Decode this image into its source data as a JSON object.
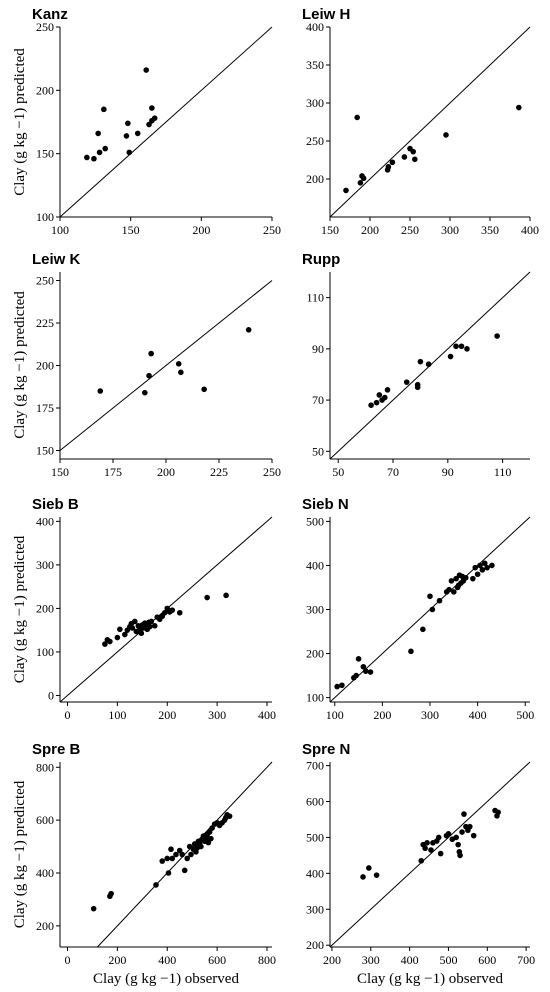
{
  "chart_data": [
    {
      "type": "scatter",
      "title": "Kanz",
      "xlim": [
        100,
        250
      ],
      "ylim": [
        100,
        250
      ],
      "xticks": [
        100,
        150,
        200,
        250
      ],
      "yticks": [
        100,
        150,
        200,
        250
      ],
      "identity_line": true,
      "points": [
        [
          119,
          147
        ],
        [
          124,
          146
        ],
        [
          127,
          166
        ],
        [
          128,
          151
        ],
        [
          131,
          185
        ],
        [
          132,
          154
        ],
        [
          147,
          164
        ],
        [
          148,
          174
        ],
        [
          149,
          151
        ],
        [
          155,
          166
        ],
        [
          161,
          216
        ],
        [
          163,
          173
        ],
        [
          165,
          186
        ],
        [
          165,
          176
        ],
        [
          167,
          178
        ]
      ]
    },
    {
      "type": "scatter",
      "title": "Leiw H",
      "xlim": [
        150,
        400
      ],
      "ylim": [
        150,
        400
      ],
      "xticks": [
        150,
        200,
        250,
        300,
        350,
        400
      ],
      "yticks": [
        200,
        250,
        300,
        350,
        400
      ],
      "identity_line": true,
      "points": [
        [
          170,
          185
        ],
        [
          184,
          281
        ],
        [
          188,
          195
        ],
        [
          190,
          204
        ],
        [
          192,
          201
        ],
        [
          222,
          212
        ],
        [
          223,
          216
        ],
        [
          228,
          222
        ],
        [
          243,
          229
        ],
        [
          250,
          240
        ],
        [
          254,
          236
        ],
        [
          256,
          226
        ],
        [
          295,
          258
        ],
        [
          386,
          294
        ]
      ]
    },
    {
      "type": "scatter",
      "title": "Leiw K",
      "xlim": [
        150,
        250
      ],
      "ylim": [
        145,
        255
      ],
      "xticks": [
        150,
        175,
        200,
        225,
        250
      ],
      "yticks": [
        150,
        175,
        200,
        225,
        250
      ],
      "identity_line": true,
      "points": [
        [
          169,
          185
        ],
        [
          190,
          184
        ],
        [
          192,
          194
        ],
        [
          193,
          207
        ],
        [
          206,
          201
        ],
        [
          207,
          196
        ],
        [
          218,
          186
        ],
        [
          239,
          221
        ]
      ]
    },
    {
      "type": "scatter",
      "title": "Rupp",
      "xlim": [
        47,
        120
      ],
      "ylim": [
        47,
        120
      ],
      "xticks": [
        50,
        70,
        90,
        110
      ],
      "yticks": [
        50,
        70,
        90,
        110
      ],
      "identity_line": true,
      "points": [
        [
          62,
          68
        ],
        [
          64,
          69
        ],
        [
          65,
          72
        ],
        [
          66,
          70
        ],
        [
          67,
          71
        ],
        [
          68,
          74
        ],
        [
          75,
          77
        ],
        [
          79,
          75
        ],
        [
          79,
          76
        ],
        [
          80,
          85
        ],
        [
          83,
          84
        ],
        [
          91,
          87
        ],
        [
          93,
          91
        ],
        [
          95,
          91
        ],
        [
          97,
          90
        ],
        [
          108,
          95
        ]
      ]
    },
    {
      "type": "scatter",
      "title": "Sieb B",
      "xlim": [
        -15,
        410
      ],
      "ylim": [
        -15,
        410
      ],
      "xticks": [
        0,
        100,
        200,
        300,
        400
      ],
      "yticks": [
        0,
        100,
        200,
        300,
        400
      ],
      "identity_line": true,
      "ylabel": "Clay (g kg −1) predicted",
      "points": [
        [
          75,
          118
        ],
        [
          80,
          128
        ],
        [
          85,
          124
        ],
        [
          100,
          133
        ],
        [
          105,
          152
        ],
        [
          115,
          140
        ],
        [
          120,
          150
        ],
        [
          125,
          158
        ],
        [
          128,
          165
        ],
        [
          130,
          155
        ],
        [
          135,
          170
        ],
        [
          138,
          147
        ],
        [
          142,
          160
        ],
        [
          145,
          153
        ],
        [
          148,
          143
        ],
        [
          150,
          162
        ],
        [
          152,
          155
        ],
        [
          155,
          166
        ],
        [
          158,
          160
        ],
        [
          160,
          152
        ],
        [
          163,
          168
        ],
        [
          165,
          158
        ],
        [
          168,
          170
        ],
        [
          175,
          160
        ],
        [
          180,
          180
        ],
        [
          185,
          175
        ],
        [
          190,
          182
        ],
        [
          195,
          190
        ],
        [
          200,
          200
        ],
        [
          205,
          192
        ],
        [
          210,
          196
        ],
        [
          225,
          190
        ],
        [
          280,
          225
        ],
        [
          318,
          230
        ]
      ]
    },
    {
      "type": "scatter",
      "title": "Sieb N",
      "xlim": [
        90,
        510
      ],
      "ylim": [
        90,
        510
      ],
      "xticks": [
        100,
        200,
        300,
        400,
        500
      ],
      "yticks": [
        100,
        200,
        300,
        400,
        500
      ],
      "identity_line": true,
      "points": [
        [
          105,
          125
        ],
        [
          115,
          128
        ],
        [
          140,
          145
        ],
        [
          145,
          150
        ],
        [
          150,
          188
        ],
        [
          160,
          170
        ],
        [
          165,
          160
        ],
        [
          175,
          158
        ],
        [
          260,
          205
        ],
        [
          285,
          255
        ],
        [
          300,
          330
        ],
        [
          305,
          300
        ],
        [
          320,
          320
        ],
        [
          335,
          340
        ],
        [
          340,
          345
        ],
        [
          345,
          365
        ],
        [
          350,
          340
        ],
        [
          355,
          370
        ],
        [
          358,
          350
        ],
        [
          360,
          355
        ],
        [
          362,
          378
        ],
        [
          365,
          360
        ],
        [
          368,
          375
        ],
        [
          370,
          365
        ],
        [
          375,
          372
        ],
        [
          390,
          370
        ],
        [
          395,
          395
        ],
        [
          400,
          380
        ],
        [
          405,
          400
        ],
        [
          410,
          390
        ],
        [
          415,
          405
        ],
        [
          420,
          395
        ],
        [
          430,
          400
        ]
      ]
    },
    {
      "type": "scatter",
      "title": "Spre B",
      "xlim": [
        -30,
        820
      ],
      "ylim": [
        120,
        820
      ],
      "xticks": [
        0,
        200,
        400,
        600,
        800
      ],
      "yticks": [
        200,
        400,
        600,
        800
      ],
      "identity_line": true,
      "ylabel": "Clay (g kg −1) predicted",
      "xlabel": "Clay (g kg −1) observed",
      "points": [
        [
          105,
          265
        ],
        [
          170,
          312
        ],
        [
          175,
          322
        ],
        [
          355,
          355
        ],
        [
          380,
          445
        ],
        [
          400,
          455
        ],
        [
          405,
          400
        ],
        [
          415,
          490
        ],
        [
          420,
          455
        ],
        [
          435,
          470
        ],
        [
          450,
          485
        ],
        [
          460,
          470
        ],
        [
          470,
          410
        ],
        [
          480,
          455
        ],
        [
          490,
          500
        ],
        [
          495,
          470
        ],
        [
          505,
          490
        ],
        [
          510,
          510
        ],
        [
          515,
          480
        ],
        [
          520,
          495
        ],
        [
          525,
          520
        ],
        [
          530,
          510
        ],
        [
          535,
          500
        ],
        [
          540,
          525
        ],
        [
          545,
          540
        ],
        [
          550,
          520
        ],
        [
          555,
          530
        ],
        [
          560,
          545
        ],
        [
          565,
          515
        ],
        [
          570,
          555
        ],
        [
          575,
          530
        ],
        [
          580,
          570
        ],
        [
          590,
          585
        ],
        [
          600,
          590
        ],
        [
          610,
          580
        ],
        [
          620,
          590
        ],
        [
          630,
          600
        ],
        [
          635,
          610
        ],
        [
          640,
          620
        ],
        [
          650,
          615
        ]
      ]
    },
    {
      "type": "scatter",
      "title": "Spre N",
      "xlim": [
        195,
        710
      ],
      "ylim": [
        195,
        710
      ],
      "xticks": [
        200,
        300,
        400,
        500,
        600,
        700
      ],
      "yticks": [
        200,
        300,
        400,
        500,
        600,
        700
      ],
      "identity_line": true,
      "xlabel": "Clay (g kg −1) observed",
      "points": [
        [
          280,
          390
        ],
        [
          295,
          415
        ],
        [
          315,
          395
        ],
        [
          430,
          435
        ],
        [
          435,
          480
        ],
        [
          440,
          470
        ],
        [
          445,
          485
        ],
        [
          455,
          465
        ],
        [
          460,
          485
        ],
        [
          470,
          490
        ],
        [
          475,
          500
        ],
        [
          480,
          455
        ],
        [
          495,
          505
        ],
        [
          500,
          510
        ],
        [
          510,
          495
        ],
        [
          520,
          500
        ],
        [
          525,
          480
        ],
        [
          528,
          460
        ],
        [
          530,
          450
        ],
        [
          535,
          515
        ],
        [
          540,
          565
        ],
        [
          545,
          530
        ],
        [
          550,
          520
        ],
        [
          555,
          530
        ],
        [
          565,
          505
        ],
        [
          620,
          575
        ],
        [
          625,
          560
        ],
        [
          628,
          570
        ]
      ]
    }
  ]
}
